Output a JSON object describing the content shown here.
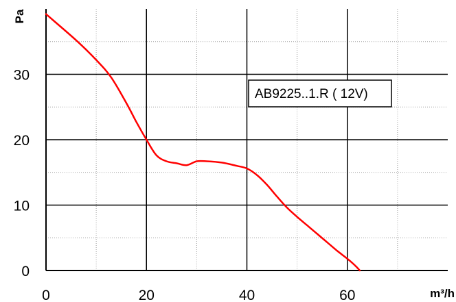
{
  "chart_data": {
    "type": "line",
    "title": "",
    "xlabel": "m³/h",
    "ylabel": "Pa",
    "xlim": [
      0,
      80
    ],
    "ylim": [
      0,
      40
    ],
    "x_ticks": [
      0,
      20,
      40,
      60
    ],
    "x_tick_labels": [
      "0",
      "20",
      "40",
      "60"
    ],
    "y_ticks": [
      0,
      10,
      20,
      30
    ],
    "y_tick_labels": [
      "0",
      "10",
      "20",
      "30"
    ],
    "major_grid": true,
    "minor_grid": true,
    "legend_position": "right",
    "series": [
      {
        "name": "AB9225..1.R ( 12V)",
        "color": "#ff0000",
        "x": [
          0,
          6,
          10,
          13,
          16,
          18,
          20,
          22,
          24,
          26,
          28,
          30,
          32,
          35,
          38,
          40,
          42,
          44,
          46,
          48,
          50,
          52,
          54,
          56,
          58,
          60,
          61.5,
          62.5
        ],
        "y": [
          39.2,
          35.2,
          32.2,
          29.5,
          25.6,
          22.7,
          20,
          17.6,
          16.7,
          16.4,
          16.1,
          16.7,
          16.7,
          16.5,
          16,
          15.6,
          14.6,
          13.1,
          11.3,
          9.6,
          8.2,
          6.9,
          5.6,
          4.3,
          3,
          1.8,
          0.8,
          0
        ]
      }
    ]
  }
}
